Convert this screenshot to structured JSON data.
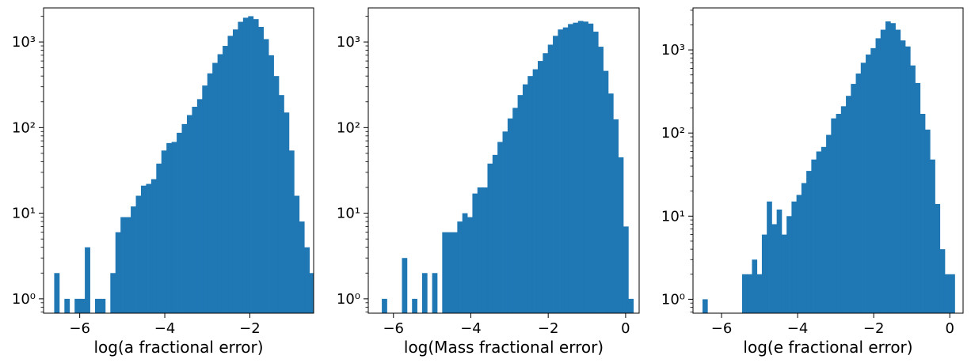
{
  "chart_data": [
    {
      "type": "bar",
      "xlabel": "log(a fractional error)",
      "ylabel": "",
      "yscale": "log",
      "xlim": [
        -6.85,
        -0.5
      ],
      "ylim": [
        0.68,
        2500
      ],
      "xticks": [
        -6,
        -4,
        -2
      ],
      "xtick_labels": [
        "−6",
        "−4",
        "−2"
      ],
      "yticks": [
        1,
        10,
        100,
        1000
      ],
      "ytick_labels": [
        "10⁰",
        "10¹",
        "10²",
        "10³"
      ],
      "bin_start": -6.6,
      "bin_width": 0.12,
      "values": [
        2,
        0,
        1,
        0,
        1,
        1,
        4,
        0,
        1,
        1,
        0,
        2,
        6,
        9,
        9,
        12,
        16,
        21,
        22,
        25,
        38,
        54,
        66,
        68,
        87,
        110,
        140,
        175,
        215,
        310,
        430,
        570,
        720,
        900,
        1180,
        1400,
        1720,
        1920,
        2000,
        1850,
        1500,
        1080,
        700,
        400,
        240,
        150,
        54,
        16,
        8,
        4,
        2
      ],
      "color": "#1f77b4",
      "grid": false
    },
    {
      "type": "bar",
      "xlabel": "log(Mass fractional error)",
      "ylabel": "",
      "yscale": "log",
      "xlim": [
        -6.65,
        0.35
      ],
      "ylim": [
        0.68,
        2500
      ],
      "xticks": [
        -6,
        -4,
        -2,
        0
      ],
      "xtick_labels": [
        "−6",
        "−4",
        "−2",
        "0"
      ],
      "yticks": [
        1,
        10,
        100,
        1000
      ],
      "ytick_labels": [
        "10⁰",
        "10¹",
        "10²",
        "10³"
      ],
      "bin_start": -6.3,
      "bin_width": 0.13,
      "values": [
        1,
        0,
        0,
        0,
        3,
        0,
        1,
        0,
        2,
        0,
        2,
        0,
        6,
        6,
        6,
        8,
        10,
        9,
        17,
        20,
        20,
        38,
        48,
        68,
        90,
        128,
        170,
        240,
        320,
        400,
        480,
        600,
        740,
        930,
        1180,
        1400,
        1480,
        1620,
        1680,
        1760,
        1730,
        1640,
        1320,
        880,
        460,
        250,
        125,
        45,
        7,
        1
      ],
      "color": "#1f77b4",
      "grid": false
    },
    {
      "type": "bar",
      "xlabel": "log(e fractional error)",
      "ylabel": "",
      "yscale": "log",
      "xlim": [
        -6.75,
        0.35
      ],
      "ylim": [
        0.68,
        3200
      ],
      "xticks": [
        -6,
        -4,
        -2,
        0
      ],
      "xtick_labels": [
        "−6",
        "−4",
        "−2",
        "0"
      ],
      "yticks": [
        1,
        10,
        100,
        1000
      ],
      "ytick_labels": [
        "10⁰",
        "10¹",
        "10²",
        "10³"
      ],
      "bin_start": -6.5,
      "bin_width": 0.13,
      "values": [
        1,
        0,
        0,
        0,
        0,
        0,
        0,
        0,
        2,
        2,
        3,
        2,
        6,
        15,
        8,
        12,
        6,
        10,
        15,
        18,
        25,
        35,
        48,
        60,
        68,
        95,
        150,
        170,
        210,
        280,
        390,
        520,
        700,
        880,
        1050,
        1380,
        1750,
        2200,
        2100,
        1750,
        1300,
        1100,
        650,
        400,
        170,
        110,
        48,
        14,
        4,
        2,
        2
      ],
      "color": "#1f77b4",
      "grid": false
    }
  ]
}
